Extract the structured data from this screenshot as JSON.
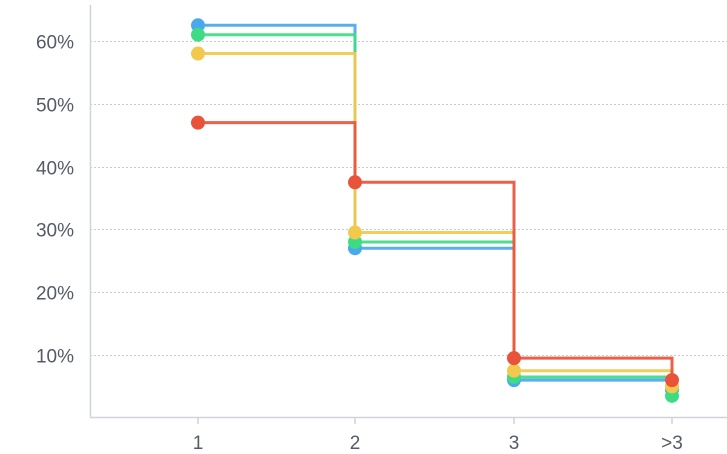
{
  "chart_data": {
    "type": "line",
    "subtype": "step",
    "categories": [
      "1",
      "2",
      "3",
      ">3"
    ],
    "y_tick_labels": [
      "10%",
      "20%",
      "30%",
      "40%",
      "50%",
      "60%"
    ],
    "y_ticks": [
      10,
      20,
      30,
      40,
      50,
      60
    ],
    "ylim": [
      0,
      65
    ],
    "grid": true,
    "legend": "none",
    "series": [
      {
        "color": "#4aa8ec",
        "values": [
          62.5,
          27,
          6,
          4.5
        ]
      },
      {
        "color": "#3ddc84",
        "values": [
          61,
          28,
          6.5,
          3.5
        ]
      },
      {
        "color": "#f2c94c",
        "values": [
          58,
          29.5,
          7.5,
          5
        ]
      },
      {
        "color": "#e8533a",
        "values": [
          47,
          37.5,
          9.5,
          6
        ]
      }
    ]
  }
}
